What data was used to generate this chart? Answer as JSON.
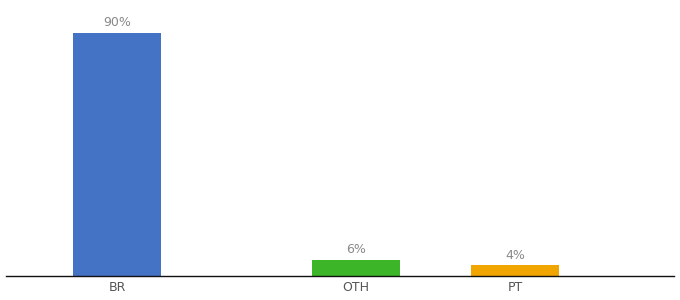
{
  "categories": [
    "BR",
    "OTH",
    "PT"
  ],
  "values": [
    90,
    6,
    4
  ],
  "bar_colors": [
    "#4472c4",
    "#3cb528",
    "#f0a500"
  ],
  "labels": [
    "90%",
    "6%",
    "4%"
  ],
  "ylim": [
    0,
    100
  ],
  "bar_width": 0.55,
  "label_fontsize": 9,
  "tick_fontsize": 9,
  "background_color": "#ffffff",
  "x_positions": [
    1.0,
    2.5,
    3.5
  ],
  "xlim": [
    0.3,
    4.5
  ],
  "label_color": "#888888"
}
